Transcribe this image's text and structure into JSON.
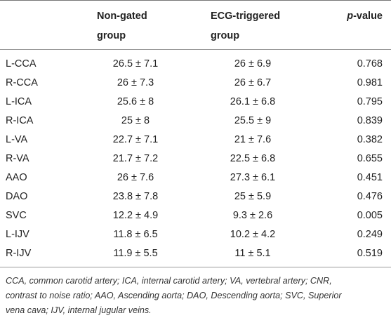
{
  "table": {
    "headers": {
      "col1_line1": "Non-gated",
      "col1_line2": "group",
      "col2_line1": "ECG-triggered",
      "col2_line2": "group",
      "col3_italic": "p",
      "col3_rest": "-value"
    },
    "rows": [
      {
        "label": "L-CCA",
        "non_gated": "26.5 ± 7.1",
        "ecg": "26 ± 6.9",
        "p": "0.768"
      },
      {
        "label": "R-CCA",
        "non_gated": "26 ± 7.3",
        "ecg": "26 ± 6.7",
        "p": "0.981"
      },
      {
        "label": "L-ICA",
        "non_gated": "25.6 ± 8",
        "ecg": "26.1 ± 6.8",
        "p": "0.795"
      },
      {
        "label": "R-ICA",
        "non_gated": "25 ± 8",
        "ecg": "25.5 ± 9",
        "p": "0.839"
      },
      {
        "label": "L-VA",
        "non_gated": "22.7 ± 7.1",
        "ecg": "21 ± 7.6",
        "p": "0.382"
      },
      {
        "label": "R-VA",
        "non_gated": "21.7 ± 7.2",
        "ecg": "22.5 ± 6.8",
        "p": "0.655"
      },
      {
        "label": "AAO",
        "non_gated": "26 ± 7.6",
        "ecg": "27.3 ± 6.1",
        "p": "0.451"
      },
      {
        "label": "DAO",
        "non_gated": "23.8 ± 7.8",
        "ecg": "25 ± 5.9",
        "p": "0.476"
      },
      {
        "label": "SVC",
        "non_gated": "12.2 ± 4.9",
        "ecg": "9.3 ± 2.6",
        "p": "0.005"
      },
      {
        "label": "L-IJV",
        "non_gated": "11.8 ± 6.5",
        "ecg": "10.2 ± 4.2",
        "p": "0.249"
      },
      {
        "label": "R-IJV",
        "non_gated": "11.9 ± 5.5",
        "ecg": "11 ± 5.1",
        "p": "0.519"
      }
    ]
  },
  "footnote": {
    "line1": "CCA, common carotid artery; ICA, internal carotid artery; VA, vertebral artery; CNR,",
    "line2": "contrast to noise ratio; AAO, Ascending aorta; DAO, Descending aorta; SVC, Superior",
    "line3": "vena cava; IJV, internal jugular veins."
  }
}
